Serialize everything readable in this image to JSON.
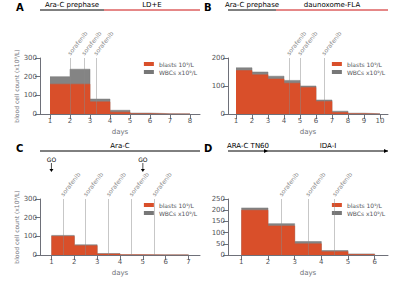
{
  "chart_data": [
    {
      "type": "area",
      "title": "A",
      "line_style": "step",
      "x": [
        1,
        2,
        3,
        4,
        5,
        6,
        7,
        8
      ],
      "series": [
        {
          "name": "blasts 10⁹/L",
          "color": "#d94f2a",
          "values": [
            160,
            160,
            65,
            10,
            2,
            0,
            0,
            0
          ]
        },
        {
          "name": "WBCs x10⁹/L",
          "color": "#777777",
          "values": [
            200,
            240,
            80,
            20,
            5,
            2,
            1,
            1
          ]
        }
      ],
      "xlim": [
        0.5,
        8.5
      ],
      "xticks": [
        1,
        2,
        3,
        4,
        5,
        6,
        7,
        8
      ],
      "ylim": [
        0,
        300
      ],
      "yticks": [
        0,
        100,
        200,
        300
      ],
      "xlabel": "days",
      "ylabel": "blood cell count (x10⁹/L)",
      "grid": false,
      "legend": "upper right",
      "annotations": [
        {
          "text": "sorafenib",
          "x": 2,
          "color": "#888888"
        },
        {
          "text": "sorafenib",
          "x": 2.7,
          "color": "#888888"
        },
        {
          "text": "sorafenib",
          "x": 3.3,
          "color": "#888888"
        },
        {
          "text": "Ara-C prephase",
          "x": [
            0.5,
            3.7
          ],
          "color": "#000000"
        },
        {
          "text": "LD+E",
          "x": [
            3.7,
            8.5
          ],
          "color": "#cc1111"
        }
      ]
    },
    {
      "type": "area",
      "title": "B",
      "line_style": "step",
      "x": [
        1,
        2,
        3,
        4,
        5,
        6,
        7,
        8,
        9,
        10
      ],
      "series": [
        {
          "name": "blasts 10⁹/L",
          "color": "#d94f2a",
          "values": [
            155,
            140,
            125,
            110,
            95,
            45,
            5,
            1,
            0,
            0
          ]
        },
        {
          "name": "WBCs x10⁹/L",
          "color": "#777777",
          "values": [
            165,
            150,
            135,
            120,
            100,
            50,
            10,
            3,
            1,
            1
          ]
        }
      ],
      "xlim": [
        0.5,
        10.5
      ],
      "xticks": [
        1,
        2,
        3,
        4,
        5,
        6,
        7,
        8,
        9,
        10
      ],
      "ylim": [
        0,
        200
      ],
      "yticks": [
        0,
        100,
        200
      ],
      "xlabel": "days",
      "grid": false,
      "legend": "upper right",
      "annotations": [
        {
          "text": "sorafenib",
          "x": 4.3,
          "color": "#888888"
        },
        {
          "text": "sorafenib",
          "x": 5.0,
          "color": "#888888"
        },
        {
          "text": "sorafenib",
          "x": 6.5,
          "color": "#888888"
        },
        {
          "text": "Ara-C prephase",
          "x": [
            0.5,
            3.5
          ],
          "color": "#000000"
        },
        {
          "text": "daunoxome-FLA",
          "x": [
            3.5,
            10.5
          ],
          "color": "#cc1111"
        }
      ]
    },
    {
      "type": "area",
      "title": "C",
      "line_style": "step",
      "x": [
        1,
        2,
        3,
        4,
        5,
        6,
        7
      ],
      "series": [
        {
          "name": "blasts 10⁹/L",
          "color": "#d94f2a",
          "values": [
            100,
            50,
            5,
            1,
            0,
            0,
            0
          ]
        },
        {
          "name": "WBCs x10⁹/L",
          "color": "#777777",
          "values": [
            105,
            55,
            8,
            2,
            1,
            1,
            1
          ]
        }
      ],
      "xlim": [
        0.5,
        7.5
      ],
      "xticks": [
        1,
        2,
        3,
        4,
        5,
        6,
        7
      ],
      "ylim": [
        0,
        300
      ],
      "yticks": [
        0,
        100,
        200,
        300
      ],
      "xlabel": "days",
      "ylabel": "blood cell count (x10⁹/L)",
      "grid": false,
      "legend": "upper right",
      "annotations": [
        {
          "text": "sorafenib",
          "x": 1.5,
          "color": "#888888"
        },
        {
          "text": "sorafenib",
          "x": 2.5,
          "color": "#888888"
        },
        {
          "text": "sorafenib",
          "x": 3.5,
          "color": "#888888"
        },
        {
          "text": "sorafenib",
          "x": 4.5,
          "color": "#888888"
        },
        {
          "text": "sorafenib",
          "x": 5.5,
          "color": "#888888"
        },
        {
          "text": "Ara-C",
          "x": [
            0.5,
            7.5
          ],
          "color": "#000000"
        },
        {
          "text": "GO",
          "x": 1,
          "marker": "arrow",
          "color": "#000000"
        },
        {
          "text": "GO",
          "x": 5,
          "marker": "arrow",
          "color": "#000000"
        }
      ]
    },
    {
      "type": "area",
      "title": "D",
      "line_style": "step",
      "x": [
        1,
        2,
        3,
        4,
        5,
        6
      ],
      "series": [
        {
          "name": "blasts 10⁹/L",
          "color": "#d94f2a",
          "values": [
            200,
            130,
            50,
            15,
            2,
            0
          ]
        },
        {
          "name": "WBCs x10⁹/L",
          "color": "#777777",
          "values": [
            210,
            140,
            60,
            20,
            5,
            1
          ]
        }
      ],
      "xlim": [
        0.5,
        6.5
      ],
      "xticks": [
        1,
        2,
        3,
        4,
        5,
        6
      ],
      "ylim": [
        0,
        250
      ],
      "yticks": [
        0,
        50,
        100,
        150,
        200,
        250
      ],
      "xlabel": "days",
      "grid": false,
      "legend": "upper right",
      "annotations": [
        {
          "text": "sorafenib",
          "x": 2.5,
          "color": "#888888"
        },
        {
          "text": "sorafenib",
          "x": 3.5,
          "color": "#888888"
        },
        {
          "text": "sorafenib",
          "x": 4.5,
          "color": "#888888"
        },
        {
          "text": "ARA-C TN60",
          "x": [
            0.5,
            2.0
          ],
          "color": "#000000",
          "marker": "arrow"
        },
        {
          "text": "IDA-I",
          "x": [
            2.0,
            6.5
          ],
          "color": "#000000",
          "marker": "arrow"
        }
      ]
    }
  ]
}
